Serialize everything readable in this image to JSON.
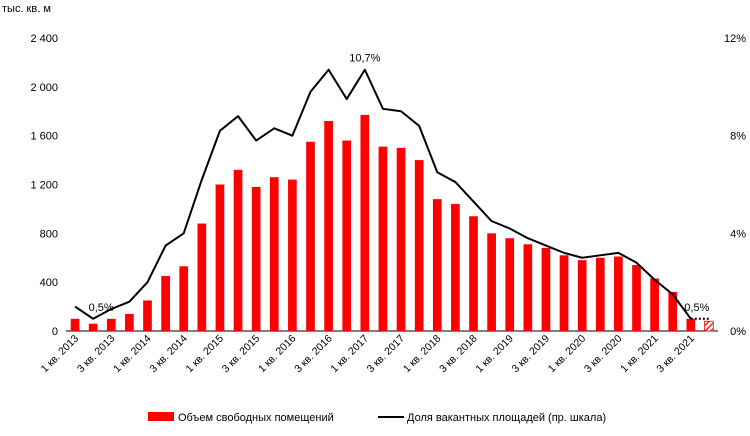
{
  "chart_data": {
    "type": "bar+line",
    "left_axis_unit": "тыс. кв. м",
    "left_axis": {
      "ylim": [
        0,
        2400
      ],
      "ticks": [
        "0",
        "400",
        "800",
        "1 200",
        "1 600",
        "2 000",
        "2 400"
      ],
      "tick_values": [
        0,
        400,
        800,
        1200,
        1600,
        2000,
        2400
      ]
    },
    "right_axis": {
      "ylim": [
        0,
        12
      ],
      "ticks": [
        "0%",
        "4%",
        "8%",
        "12%"
      ],
      "tick_values": [
        0,
        4,
        8,
        12
      ]
    },
    "grid": false,
    "legend_position": "bottom",
    "categories": [
      "1 кв. 2013",
      "2 кв. 2013",
      "3 кв. 2013",
      "4 кв. 2013",
      "1 кв. 2014",
      "2 кв. 2014",
      "3 кв. 2014",
      "4 кв. 2014",
      "1 кв. 2015",
      "2 кв. 2015",
      "3 кв. 2015",
      "4 кв. 2015",
      "1 кв. 2016",
      "2 кв. 2016",
      "3 кв. 2016",
      "4 кв. 2016",
      "1 кв. 2017",
      "2 кв. 2017",
      "3 кв. 2017",
      "4 кв. 2017",
      "1 кв. 2018",
      "2 кв. 2018",
      "3 кв. 2018",
      "4 кв. 2018",
      "1 кв. 2019",
      "2 кв. 2019",
      "3 кв. 2019",
      "4 кв. 2019",
      "1 кв. 2020",
      "2 кв. 2020",
      "3 кв. 2020",
      "4 кв. 2020",
      "1 кв. 2021",
      "2 кв. 2021",
      "3 кв. 2021",
      "4 кв. 2021"
    ],
    "x_tick_labels": [
      "1 кв. 2013",
      "3 кв. 2013",
      "1 кв. 2014",
      "3 кв. 2014",
      "1 кв. 2015",
      "3 кв. 2015",
      "1 кв. 2016",
      "3 кв. 2016",
      "1 кв. 2017",
      "3 кв. 2017",
      "1 кв. 2018",
      "3 кв. 2018",
      "1 кв. 2019",
      "3 кв. 2019",
      "1 кв. 2020",
      "3 кв. 2020",
      "1 кв. 2021",
      "3 кв. 2021"
    ],
    "series": [
      {
        "name": "Объем свободных помещений",
        "type": "bar",
        "axis": "left",
        "color": "#ff0000",
        "values": [
          100,
          60,
          100,
          140,
          250,
          450,
          530,
          880,
          1200,
          1320,
          1180,
          1260,
          1240,
          1550,
          1720,
          1560,
          1770,
          1510,
          1500,
          1400,
          1080,
          1040,
          940,
          800,
          760,
          710,
          680,
          620,
          580,
          600,
          610,
          540,
          430,
          320,
          100,
          80
        ],
        "last_bar_hatched": true
      },
      {
        "name": "Доля вакантных площадей (пр. шкала)",
        "type": "line",
        "axis": "right",
        "color": "#000000",
        "values": [
          1.0,
          0.5,
          0.9,
          1.2,
          2.0,
          3.5,
          4.0,
          6.2,
          8.2,
          8.8,
          7.8,
          8.3,
          8.0,
          9.8,
          10.7,
          9.5,
          10.7,
          9.1,
          9.0,
          8.4,
          6.5,
          6.1,
          5.3,
          4.5,
          4.2,
          3.8,
          3.5,
          3.2,
          3.0,
          3.1,
          3.2,
          2.8,
          2.1,
          1.5,
          0.5,
          0.5
        ],
        "last_segment_dotted": true
      }
    ],
    "annotations": [
      {
        "text": "0,5%",
        "category_index": 1
      },
      {
        "text": "10,7%",
        "category_index": 16
      },
      {
        "text": "0,5%",
        "category_index": 34
      }
    ]
  }
}
